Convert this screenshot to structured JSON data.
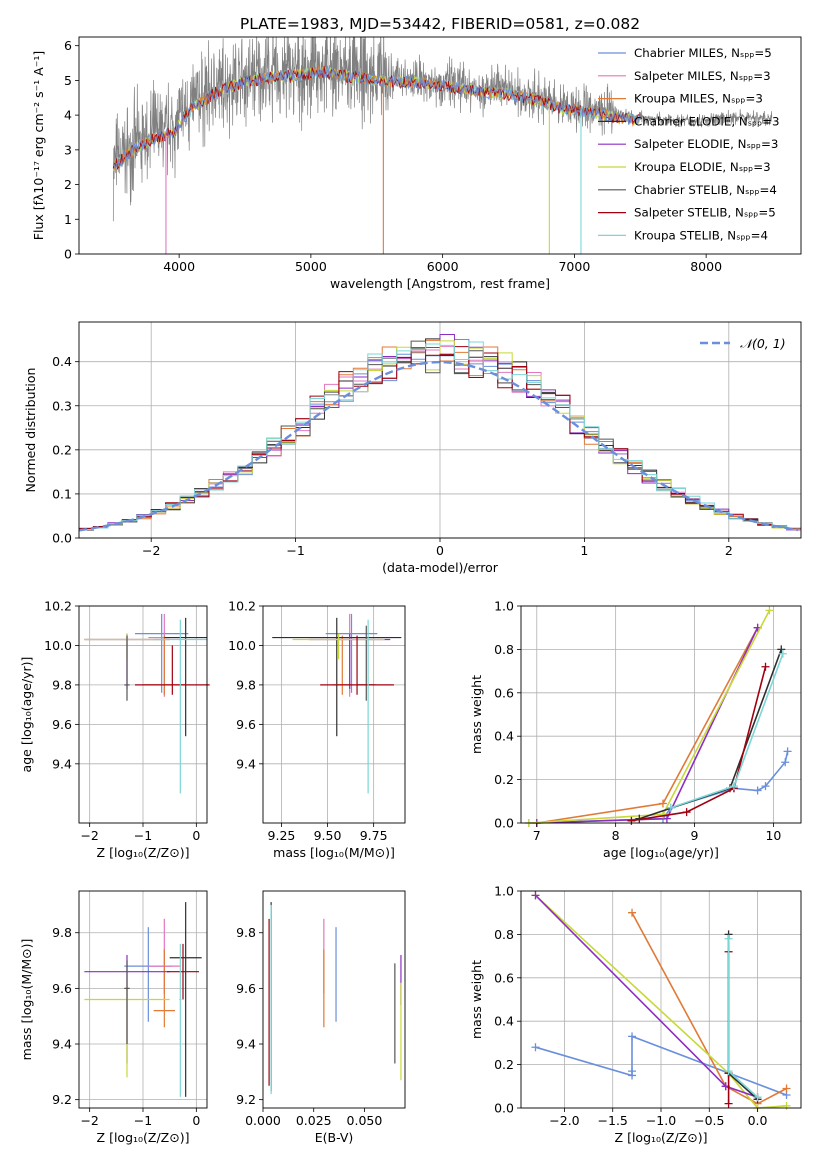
{
  "title": "PLATE=1983, MJD=53442, FIBERID=0581, z=0.082",
  "colors": [
    "#6a8fdc",
    "#e377c2",
    "#e07a36",
    "#2f2f2f",
    "#8c2ec2",
    "#c8d83a",
    "#555555",
    "#a00010",
    "#7bd6d6"
  ],
  "chart_data": [
    {
      "id": "spectrum",
      "type": "line",
      "title": "PLATE=1983, MJD=53442, FIBERID=0581, z=0.082",
      "xlabel": "wavelength [Angstrom, rest frame]",
      "ylabel": "Flux [fλ10⁻¹⁷ erg cm⁻² s⁻¹ A⁻¹]",
      "xlim": [
        3240,
        8720
      ],
      "ylim": [
        0,
        6.25
      ],
      "xticks": [
        4000,
        5000,
        6000,
        7000,
        8000
      ],
      "yticks": [
        0,
        1,
        2,
        3,
        4,
        5,
        6
      ],
      "legend_position": "right",
      "legend": [
        "Chabrier MILES, Nₛₚₚ=5",
        "Salpeter MILES, Nₛₚₚ=3",
        "Kroupa MILES, Nₛₚₚ=3",
        "Chabrier ELODIE, Nₛₚₚ=3",
        "Salpeter ELODIE, Nₛₚₚ=3",
        "Kroupa ELODIE, Nₛₚₚ=3",
        "Chabrier STELIB, Nₛₚₚ=4",
        "Salpeter STELIB, Nₛₚₚ=5",
        "Kroupa STELIB, Nₛₚₚ=4"
      ],
      "continuum_x": [
        3500,
        3650,
        3800,
        3950,
        4100,
        4300,
        4500,
        4700,
        4900,
        5100,
        5300,
        5500,
        5700,
        5900,
        6100,
        6300,
        6500,
        6700,
        6900,
        7100,
        7300,
        7500,
        7700,
        7900,
        8100,
        8300,
        8500
      ],
      "continuum_y": [
        2.6,
        3.1,
        3.4,
        3.6,
        4.3,
        4.8,
        5.05,
        5.2,
        5.25,
        5.35,
        5.2,
        5.1,
        5.05,
        5.0,
        4.9,
        4.75,
        4.7,
        4.55,
        4.3,
        4.2,
        4.05,
        3.95,
        3.85,
        3.85,
        3.9,
        3.95,
        3.9
      ]
    },
    {
      "id": "residuals",
      "type": "histogram",
      "xlabel": "(data-model)/error",
      "ylabel": "Normed distribution",
      "xlim": [
        -2.5,
        2.5
      ],
      "ylim": [
        0,
        0.49
      ],
      "xticks": [
        -2,
        -1,
        0,
        1,
        2
      ],
      "yticks": [
        0.0,
        0.1,
        0.2,
        0.3,
        0.4
      ],
      "bin_width": 0.1,
      "grid": true,
      "legend_position": "top-right",
      "reference": {
        "name": "𝒩(0, 1)",
        "mean": 0,
        "sigma": 1,
        "color": "#6a8fdc"
      }
    },
    {
      "id": "age_vs_Z",
      "type": "errorbar",
      "xlabel": "Z [log₁₀(Z/Z⊙)]",
      "ylabel": "age  [log₁₀(age/yr)]",
      "xlim": [
        -2.2,
        0.2
      ],
      "ylim": [
        9.1,
        10.2
      ],
      "xticks": [
        -2,
        -1,
        0
      ],
      "yticks": [
        9.4,
        9.6,
        9.8,
        10.0,
        10.2
      ],
      "grid": true,
      "points": [
        {
          "x": -0.65,
          "y": 10.06,
          "xerr": 0.5,
          "yerr": [
            0.3,
            0.1
          ],
          "c": 0
        },
        {
          "x": -0.6,
          "y": 10.04,
          "xerr": 0.3,
          "yerr": [
            0.3,
            0.12
          ],
          "c": 1
        },
        {
          "x": -0.6,
          "y": 9.8,
          "xerr": 0.4,
          "yerr": [
            0.05,
            0.25
          ],
          "c": 2
        },
        {
          "x": -0.2,
          "y": 10.04,
          "xerr": 0.4,
          "yerr": [
            0.5,
            0.1
          ],
          "c": 3
        },
        {
          "x": -1.3,
          "y": 10.03,
          "xerr": 0.8,
          "yerr": [
            0.25,
            0.03
          ],
          "c": 4
        },
        {
          "x": -1.3,
          "y": 10.03,
          "xerr": 0.8,
          "yerr": [
            0.1,
            0.03
          ],
          "c": 5
        },
        {
          "x": -1.3,
          "y": 9.8,
          "xerr": 0.05,
          "yerr": [
            0.08,
            0.25
          ],
          "c": 6
        },
        {
          "x": -0.45,
          "y": 9.8,
          "xerr": 0.7,
          "yerr": [
            0.05,
            0.2
          ],
          "c": 7
        },
        {
          "x": -0.3,
          "y": 10.03,
          "xerr": 0.5,
          "yerr": [
            0.78,
            0.1
          ],
          "c": 8
        }
      ]
    },
    {
      "id": "age_vs_mass",
      "type": "errorbar",
      "xlabel": "mass [log₁₀(M/M⊙)]",
      "ylabel": "",
      "xlim": [
        9.15,
        9.92
      ],
      "ylim": [
        9.1,
        10.2
      ],
      "xticks": [
        9.25,
        9.5,
        9.75
      ],
      "yticks": [
        9.4,
        9.6,
        9.8,
        10.0,
        10.2
      ],
      "grid": true,
      "points": [
        {
          "x": 9.63,
          "y": 10.06,
          "xerr": 0.14,
          "yerr": [
            0.3,
            0.1
          ],
          "c": 0
        },
        {
          "x": 9.62,
          "y": 10.04,
          "xerr": 0.1,
          "yerr": [
            0.3,
            0.12
          ],
          "c": 1
        },
        {
          "x": 9.58,
          "y": 9.8,
          "xerr": 0.05,
          "yerr": [
            0.05,
            0.25
          ],
          "c": 2
        },
        {
          "x": 9.55,
          "y": 10.04,
          "xerr": 0.35,
          "yerr": [
            0.5,
            0.1
          ],
          "c": 3
        },
        {
          "x": 9.62,
          "y": 10.03,
          "xerr": 0.22,
          "yerr": [
            0.25,
            0.03
          ],
          "c": 4
        },
        {
          "x": 9.56,
          "y": 10.03,
          "xerr": 0.25,
          "yerr": [
            0.1,
            0.03
          ],
          "c": 5
        },
        {
          "x": 9.71,
          "y": 9.8,
          "xerr": 0.05,
          "yerr": [
            0.08,
            0.3
          ],
          "c": 6
        },
        {
          "x": 9.66,
          "y": 9.8,
          "xerr": 0.2,
          "yerr": [
            0.05,
            0.25
          ],
          "c": 7
        },
        {
          "x": 9.72,
          "y": 10.03,
          "xerr": 0.02,
          "yerr": [
            0.78,
            0.1
          ],
          "c": 8
        }
      ]
    },
    {
      "id": "weight_vs_age",
      "type": "line",
      "xlabel": "age  [log₁₀(age/yr)]",
      "ylabel": "mass weight",
      "xlim": [
        6.8,
        10.35
      ],
      "ylim": [
        0,
        1.0
      ],
      "xticks": [
        7,
        8,
        9,
        10
      ],
      "yticks": [
        0.0,
        0.2,
        0.4,
        0.6,
        0.8,
        1.0
      ],
      "grid": true,
      "series": [
        {
          "c": 0,
          "x": [
            6.9,
            8.6,
            8.7,
            9.5,
            9.8,
            9.9,
            10.15,
            10.18
          ],
          "y": [
            0.0,
            0.02,
            0.07,
            0.16,
            0.15,
            0.17,
            0.28,
            0.33
          ]
        },
        {
          "c": 2,
          "x": [
            7.0,
            8.6,
            9.8
          ],
          "y": [
            0.0,
            0.09,
            0.9
          ]
        },
        {
          "c": 4,
          "x": [
            7.0,
            8.65,
            9.8
          ],
          "y": [
            0.0,
            0.02,
            0.9
          ]
        },
        {
          "c": 5,
          "x": [
            6.9,
            8.6,
            9.95
          ],
          "y": [
            0.0,
            0.04,
            0.98
          ]
        },
        {
          "c": 3,
          "x": [
            8.3,
            9.45,
            10.1
          ],
          "y": [
            0.02,
            0.16,
            0.8
          ]
        },
        {
          "c": 7,
          "x": [
            8.2,
            8.9,
            9.5,
            9.9
          ],
          "y": [
            0.01,
            0.05,
            0.16,
            0.72
          ]
        },
        {
          "c": 8,
          "x": [
            8.7,
            9.5,
            10.12
          ],
          "y": [
            0.07,
            0.17,
            0.78
          ]
        }
      ]
    },
    {
      "id": "mass_vs_Z",
      "type": "errorbar",
      "xlabel": "Z [log₁₀(Z/Z⊙)]",
      "ylabel": "mass [log₁₀(M/M⊙)]",
      "xlim": [
        -2.2,
        0.2
      ],
      "ylim": [
        9.17,
        9.95
      ],
      "xticks": [
        -2,
        -1,
        0
      ],
      "yticks": [
        9.2,
        9.4,
        9.6,
        9.8
      ],
      "grid": true,
      "points": [
        {
          "x": -0.9,
          "y": 9.68,
          "xerr": 0.45,
          "yerr": [
            0.2,
            0.14
          ],
          "c": 0
        },
        {
          "x": -0.6,
          "y": 9.68,
          "xerr": 0.3,
          "yerr": [
            0.1,
            0.17
          ],
          "c": 1
        },
        {
          "x": -0.6,
          "y": 9.52,
          "xerr": 0.2,
          "yerr": [
            0.06,
            0.22
          ],
          "c": 2
        },
        {
          "x": -0.2,
          "y": 9.71,
          "xerr": 0.3,
          "yerr": [
            0.5,
            0.2
          ],
          "c": 3
        },
        {
          "x": -1.3,
          "y": 9.66,
          "xerr": 0.8,
          "yerr": [
            0.33,
            0.06
          ],
          "c": 4
        },
        {
          "x": -1.3,
          "y": 9.56,
          "xerr": 0.8,
          "yerr": [
            0.28,
            0.05
          ],
          "c": 5
        },
        {
          "x": -1.3,
          "y": 9.6,
          "xerr": 0.05,
          "yerr": [
            0.2,
            0.1
          ],
          "c": 6
        },
        {
          "x": -0.25,
          "y": 9.66,
          "xerr": 0.3,
          "yerr": [
            0.1,
            0.1
          ],
          "c": 7
        },
        {
          "x": -0.3,
          "y": 9.56,
          "xerr": 0.02,
          "yerr": [
            0.35,
            0.2
          ],
          "c": 8
        }
      ]
    },
    {
      "id": "mass_vs_ebv",
      "type": "errorbar",
      "xlabel": "E(B-V)",
      "ylabel": "",
      "xlim": [
        0.0,
        0.07
      ],
      "ylim": [
        9.17,
        9.95
      ],
      "xticks": [
        0.0,
        0.025,
        0.05
      ],
      "xticklabels": [
        "0.000",
        "0.025",
        "0.050"
      ],
      "yticks": [
        9.2,
        9.4,
        9.6,
        9.8
      ],
      "grid": false,
      "points": [
        {
          "x": 0.036,
          "y": 9.65,
          "xerr": 0,
          "yerr": [
            0.17,
            0.17
          ],
          "c": 0
        },
        {
          "x": 0.03,
          "y": 9.7,
          "xerr": 0,
          "yerr": [
            0.12,
            0.15
          ],
          "c": 1
        },
        {
          "x": 0.03,
          "y": 9.6,
          "xerr": 0,
          "yerr": [
            0.14,
            0.14
          ],
          "c": 2
        },
        {
          "x": 0.004,
          "y": 9.7,
          "xerr": 0,
          "yerr": [
            0.47,
            0.21
          ],
          "c": 3
        },
        {
          "x": 0.068,
          "y": 9.64,
          "xerr": 0,
          "yerr": [
            0.1,
            0.08
          ],
          "c": 4
        },
        {
          "x": 0.068,
          "y": 9.45,
          "xerr": 0,
          "yerr": [
            0.18,
            0.17
          ],
          "c": 5
        },
        {
          "x": 0.065,
          "y": 9.51,
          "xerr": 0,
          "yerr": [
            0.18,
            0.18
          ],
          "c": 6
        },
        {
          "x": 0.003,
          "y": 9.55,
          "xerr": 0,
          "yerr": [
            0.3,
            0.3
          ],
          "c": 7
        },
        {
          "x": 0.004,
          "y": 9.6,
          "xerr": 0,
          "yerr": [
            0.38,
            0.3
          ],
          "c": 8
        }
      ]
    },
    {
      "id": "weight_vs_Z",
      "type": "line",
      "xlabel": "Z [log₁₀(Z/Z⊙)]",
      "ylabel": "mass weight",
      "xlim": [
        -2.45,
        0.45
      ],
      "ylim": [
        0,
        1.0
      ],
      "xticks": [
        -2.0,
        -1.5,
        -1.0,
        -0.5,
        0.0
      ],
      "xticklabels": [
        "−2.0",
        "−1.5",
        "−1.0",
        "−0.5",
        "0.0"
      ],
      "yticks": [
        0.0,
        0.2,
        0.4,
        0.6,
        0.8,
        1.0
      ],
      "grid": true,
      "series": [
        {
          "c": 0,
          "x": [
            -2.3,
            -1.3,
            -1.3,
            -1.3,
            0.3
          ],
          "y": [
            0.28,
            0.15,
            0.17,
            0.33,
            0.06
          ]
        },
        {
          "c": 2,
          "x": [
            -1.3,
            -0.33,
            0.0,
            0.3
          ],
          "y": [
            0.9,
            0.1,
            0.02,
            0.09
          ]
        },
        {
          "c": 5,
          "x": [
            -2.3,
            -0.3,
            0.0,
            0.3
          ],
          "y": [
            0.98,
            0.16,
            0.0,
            0.01
          ]
        },
        {
          "c": 4,
          "x": [
            -2.3,
            -0.33,
            0.0
          ],
          "y": [
            0.98,
            0.1,
            0.05
          ]
        },
        {
          "c": 3,
          "x": [
            -0.3,
            -0.3,
            0.0
          ],
          "y": [
            0.8,
            0.16,
            0.04
          ]
        },
        {
          "c": 7,
          "x": [
            -0.3,
            -0.3,
            -0.3
          ],
          "y": [
            0.72,
            0.02,
            0.16
          ]
        },
        {
          "c": 8,
          "x": [
            -0.3,
            -0.3,
            0.0
          ],
          "y": [
            0.78,
            0.17,
            0.05
          ]
        }
      ]
    }
  ]
}
